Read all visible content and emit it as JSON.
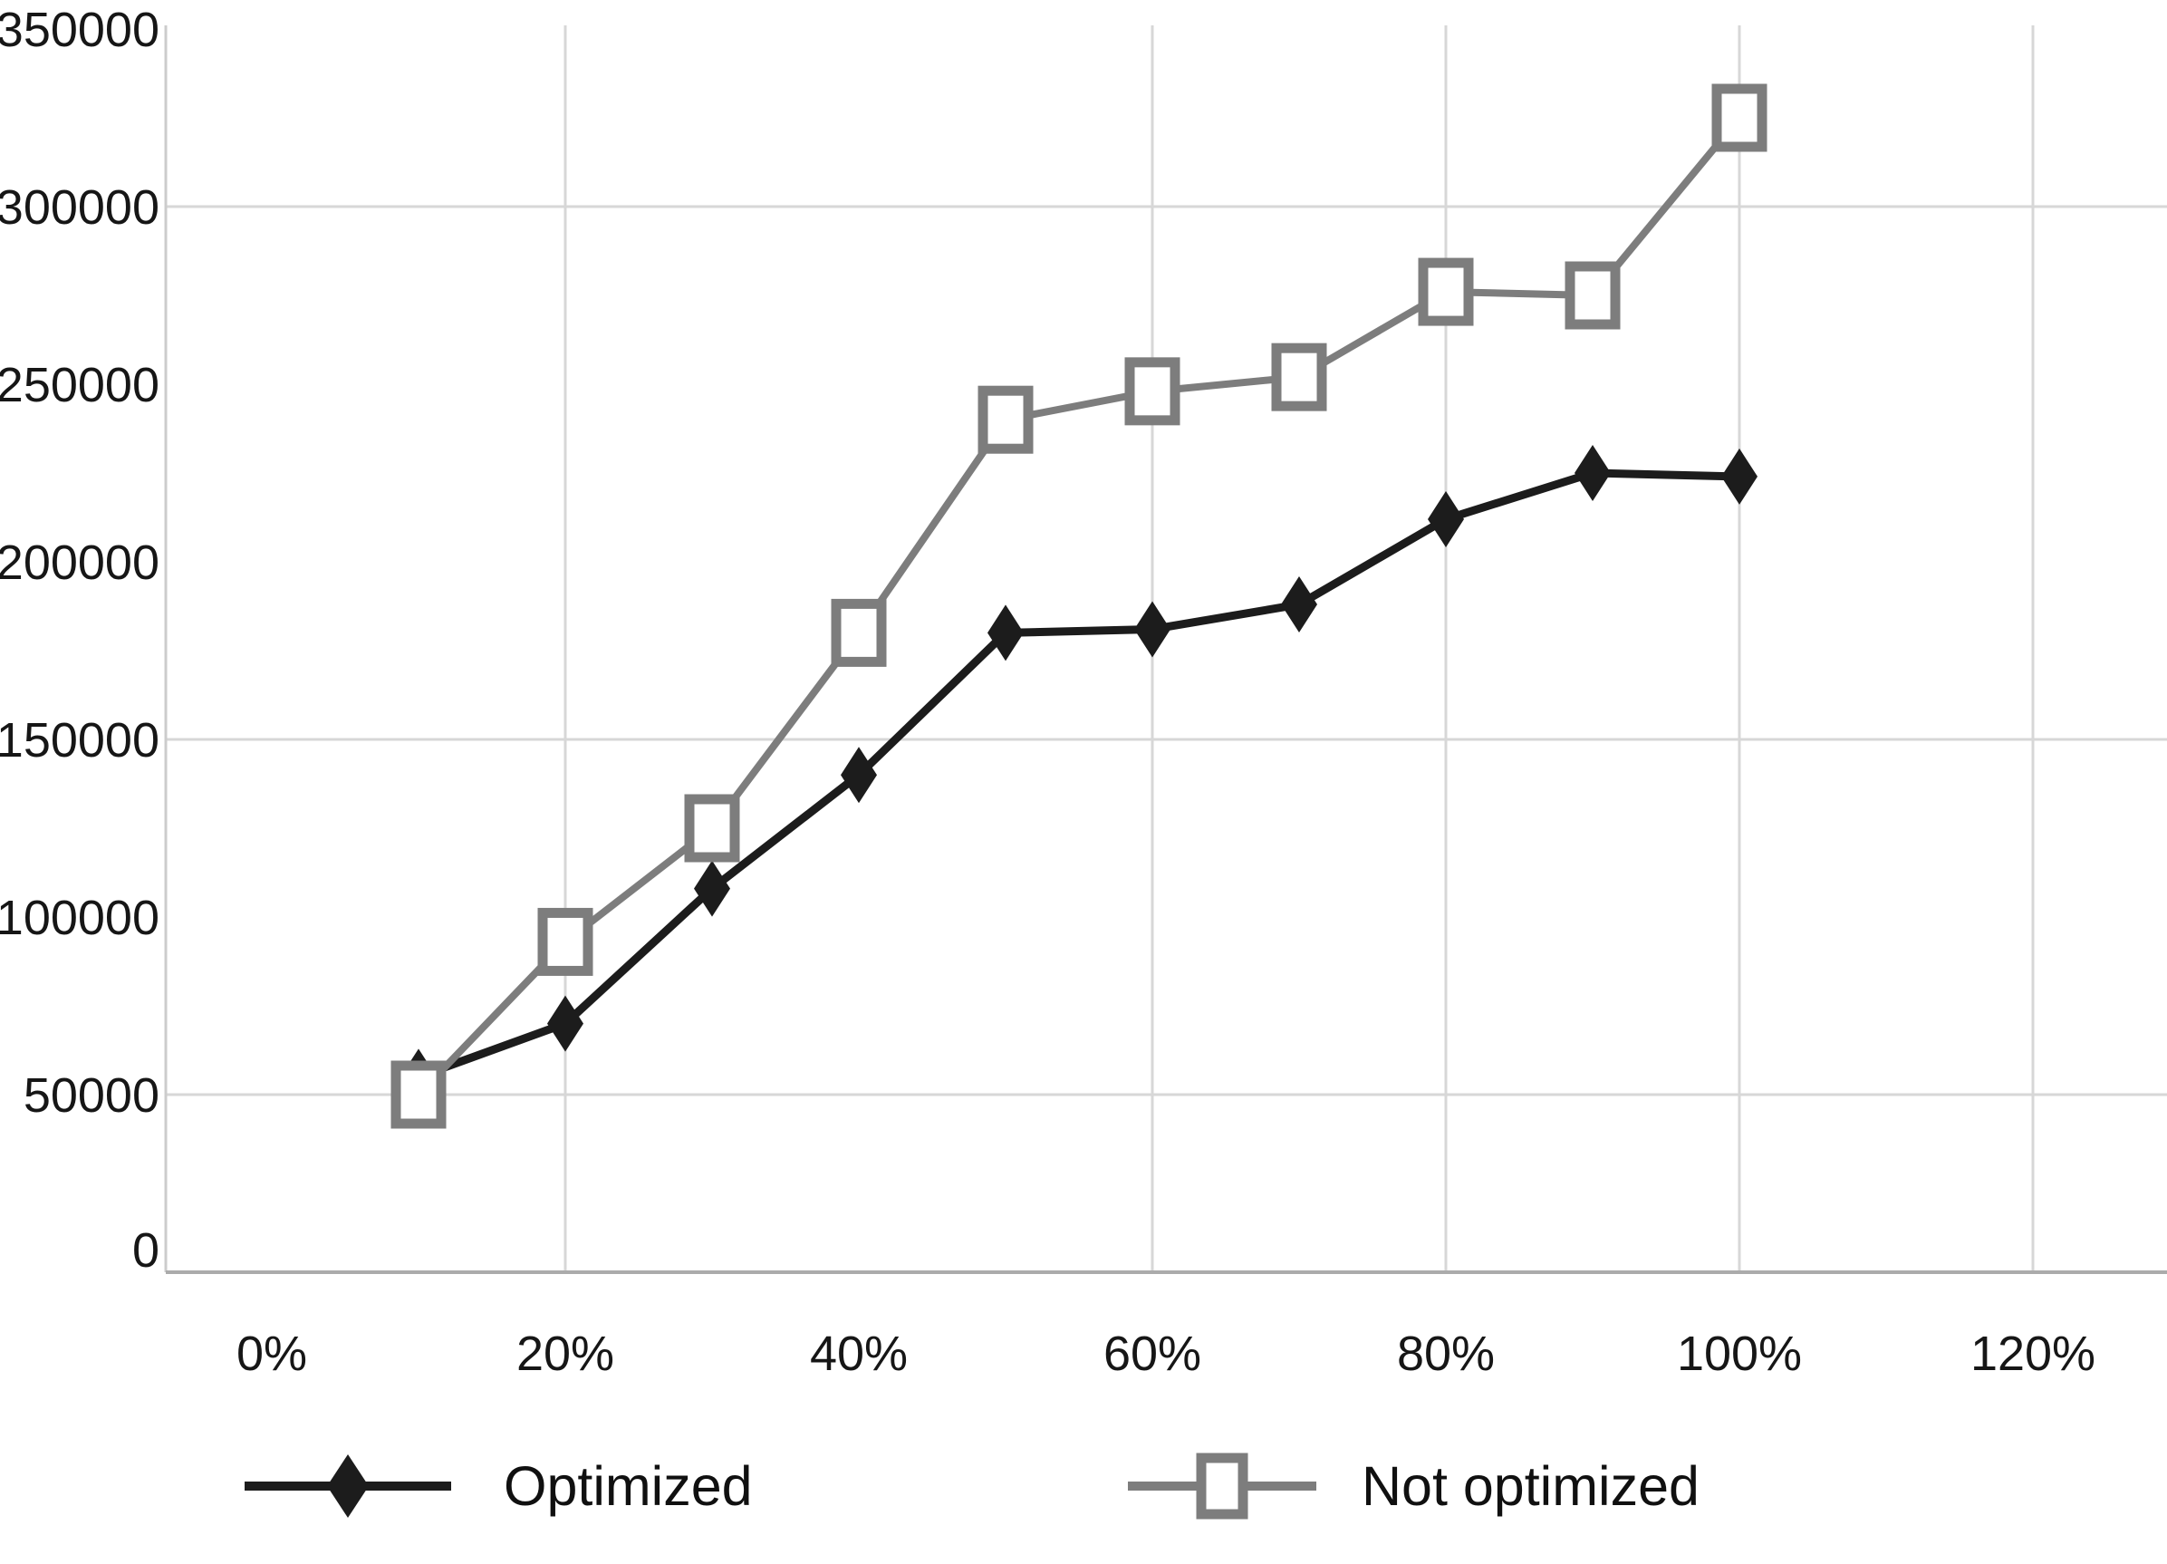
{
  "chart_data": {
    "type": "line",
    "title": "",
    "xlabel": "",
    "ylabel": "",
    "x_unit": "%",
    "xlim": [
      0,
      120
    ],
    "ylim": [
      0,
      350000
    ],
    "x_values": [
      10,
      20,
      30,
      40,
      50,
      60,
      70,
      80,
      90,
      100
    ],
    "categories": [
      "10%",
      "20%",
      "30%",
      "40%",
      "50%",
      "60%",
      "70%",
      "80%",
      "90%",
      "100%"
    ],
    "x_tick_values": [
      0,
      20,
      40,
      60,
      80,
      100,
      120
    ],
    "x_tick_labels": [
      "0%",
      "20%",
      "40%",
      "60%",
      "80%",
      "100%",
      "120%"
    ],
    "y_tick_values": [
      0,
      50000,
      100000,
      150000,
      200000,
      250000,
      300000,
      350000
    ],
    "y_tick_labels": [
      "0",
      "50000",
      "100000",
      "150000",
      "200000",
      "250000",
      "300000",
      "350000"
    ],
    "gridlines": {
      "horizontal_values": [
        50000,
        150000,
        300000
      ],
      "vertical_values": [
        20,
        60,
        80,
        100,
        120
      ]
    },
    "series": [
      {
        "name": "Optimized",
        "marker": "filled-diamond",
        "color": "#1c1c1c",
        "values": [
          55000,
          70000,
          108000,
          140000,
          180000,
          181000,
          188000,
          212000,
          225000,
          224000
        ]
      },
      {
        "name": "Not optimized",
        "marker": "open-square",
        "color": "#7d7d7d",
        "values": [
          50000,
          93000,
          125000,
          180000,
          240000,
          248000,
          252000,
          276000,
          275000,
          325000
        ]
      }
    ],
    "legend": {
      "position": "bottom",
      "entries": [
        {
          "label": "Optimized",
          "marker": "filled-diamond",
          "color": "#1c1c1c"
        },
        {
          "label": "Not optimized",
          "marker": "open-square",
          "color": "#7d7d7d"
        }
      ]
    }
  },
  "colors": {
    "background": "#ffffff",
    "grid": "#d7d7d7",
    "axis": "#ababab",
    "left_axis": "#cccccc",
    "text": "#161616",
    "optimized": "#1c1c1c",
    "not_optimized": "#7d7d7d",
    "marker_fill": "#ffffff"
  }
}
